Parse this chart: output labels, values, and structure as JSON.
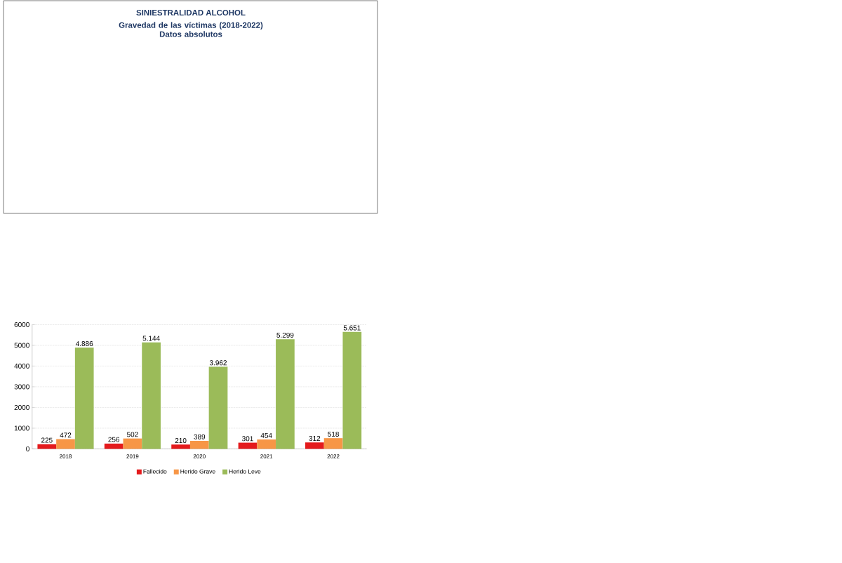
{
  "chart_data": {
    "type": "bar",
    "title": "SINIESTRALIDAD ALCOHOL",
    "subtitle": "Gravedad de las víctimas (2018-2022)\nDatos absolutos",
    "categories": [
      "2018",
      "2019",
      "2020",
      "2021",
      "2022"
    ],
    "series": [
      {
        "name": "Fallecido",
        "color": "#e41a1c",
        "values": [
          225,
          256,
          210,
          301,
          312
        ],
        "value_labels": [
          "225",
          "256",
          "210",
          "301",
          "312"
        ]
      },
      {
        "name": "Herido Grave",
        "color": "#f79646",
        "values": [
          472,
          502,
          389,
          454,
          518
        ],
        "value_labels": [
          "472",
          "502",
          "389",
          "454",
          "518"
        ]
      },
      {
        "name": "Herido Leve",
        "color": "#9bbb59",
        "values": [
          4886,
          5144,
          3962,
          5299,
          5651
        ],
        "value_labels": [
          "4.886",
          "5.144",
          "3.962",
          "5.299",
          "5.651"
        ]
      }
    ],
    "ylim": [
      0,
      6000
    ],
    "yticks": [
      0,
      1000,
      2000,
      3000,
      4000,
      5000,
      6000
    ],
    "grid": "y",
    "legend": "bottom"
  }
}
